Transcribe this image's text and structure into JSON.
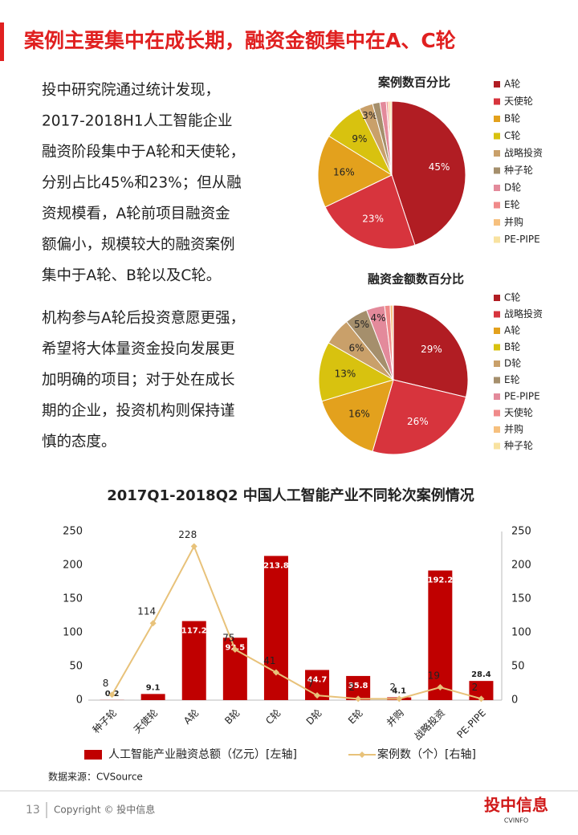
{
  "header": {
    "title": "案例主要集中在成长期，融资金额集中在A、C轮"
  },
  "paragraphs": [
    [
      "投中研究院通过统计发现，",
      "2017-2018H1人工智能企业",
      "融资阶段集中于A轮和天使轮，",
      "分别占比45%和23%；但从融",
      "资规模看，A轮前项目融资金",
      "额偏小，规模较大的融资案例",
      "集中于A轮、B轮以及C轮。"
    ],
    [
      "机构参与A轮后投资意愿更强，",
      "希望将大体量资金投向发展更",
      "加明确的项目；对于处在成长",
      "期的企业，投资机构则保持谨",
      "慎的态度。"
    ]
  ],
  "chart_data": [
    {
      "type": "pie",
      "title": "案例数百分比",
      "categories": [
        "A轮",
        "天使轮",
        "B轮",
        "C轮",
        "战略投资",
        "种子轮",
        "D轮",
        "E轮",
        "并购",
        "PE-PIPE"
      ],
      "values": [
        45,
        23,
        16,
        9,
        3,
        1.6,
        1.4,
        0.4,
        0.4,
        0.4
      ],
      "value_labels": [
        "45%",
        "23%",
        "16%",
        "9%",
        "3%",
        null,
        null,
        null,
        null,
        null
      ],
      "colors": [
        "#b11d23",
        "#d7343d",
        "#e3a11d",
        "#d8c20f",
        "#c9a06a",
        "#a58f6c",
        "#e38a9b",
        "#f08a8a",
        "#f6c07e",
        "#f8e2a0"
      ],
      "legend": "right"
    },
    {
      "type": "pie",
      "title": "融资金额数百分比",
      "categories": [
        "C轮",
        "战略投资",
        "A轮",
        "B轮",
        "D轮",
        "E轮",
        "PE-PIPE",
        "天使轮",
        "并购",
        "种子轮"
      ],
      "values": [
        29,
        26,
        16,
        13,
        6,
        5,
        4,
        1.2,
        0.6,
        0.1
      ],
      "value_labels": [
        "29%",
        "26%",
        "16%",
        "13%",
        "6%",
        "5%",
        "4%",
        null,
        null,
        null
      ],
      "colors": [
        "#b11d23",
        "#d7343d",
        "#e3a11d",
        "#d8c20f",
        "#c9a06a",
        "#a58f6c",
        "#e38a9b",
        "#f08a8a",
        "#f6c07e",
        "#f8e2a0"
      ],
      "legend": "right"
    },
    {
      "type": "bar-line",
      "title": "2017Q1-2018Q2 中国人工智能产业不同轮次案例情况",
      "categories": [
        "种子轮",
        "天使轮",
        "A轮",
        "B轮",
        "C轮",
        "D轮",
        "E轮",
        "并购",
        "战略投资",
        "PE-PIPE"
      ],
      "series": [
        {
          "name": "人工智能产业融资总额（亿元）[左轴]",
          "type": "bar",
          "color": "#c00000",
          "values": [
            0.2,
            9.1,
            117.2,
            92.5,
            213.8,
            44.7,
            35.8,
            4.1,
            192.2,
            28.4
          ]
        },
        {
          "name": "案例数（个）[右轴]",
          "type": "line",
          "axis": "y2",
          "color": "#e8c27a",
          "values": [
            8,
            114,
            228,
            75,
            41,
            7,
            2,
            2,
            19,
            2
          ]
        }
      ],
      "ylim": [
        0,
        250
      ],
      "yticks": [
        0,
        50,
        100,
        150,
        200,
        250
      ],
      "y2lim": [
        0,
        250
      ],
      "y2ticks": [
        0,
        50,
        100,
        150,
        200,
        250
      ],
      "legend": "bottom"
    }
  ],
  "source": "数据来源：CVSource",
  "footer": {
    "page": "13",
    "copyright": "Copyright © 投中信息",
    "logo": "投中信息",
    "logo_sub": "CVINFO"
  }
}
